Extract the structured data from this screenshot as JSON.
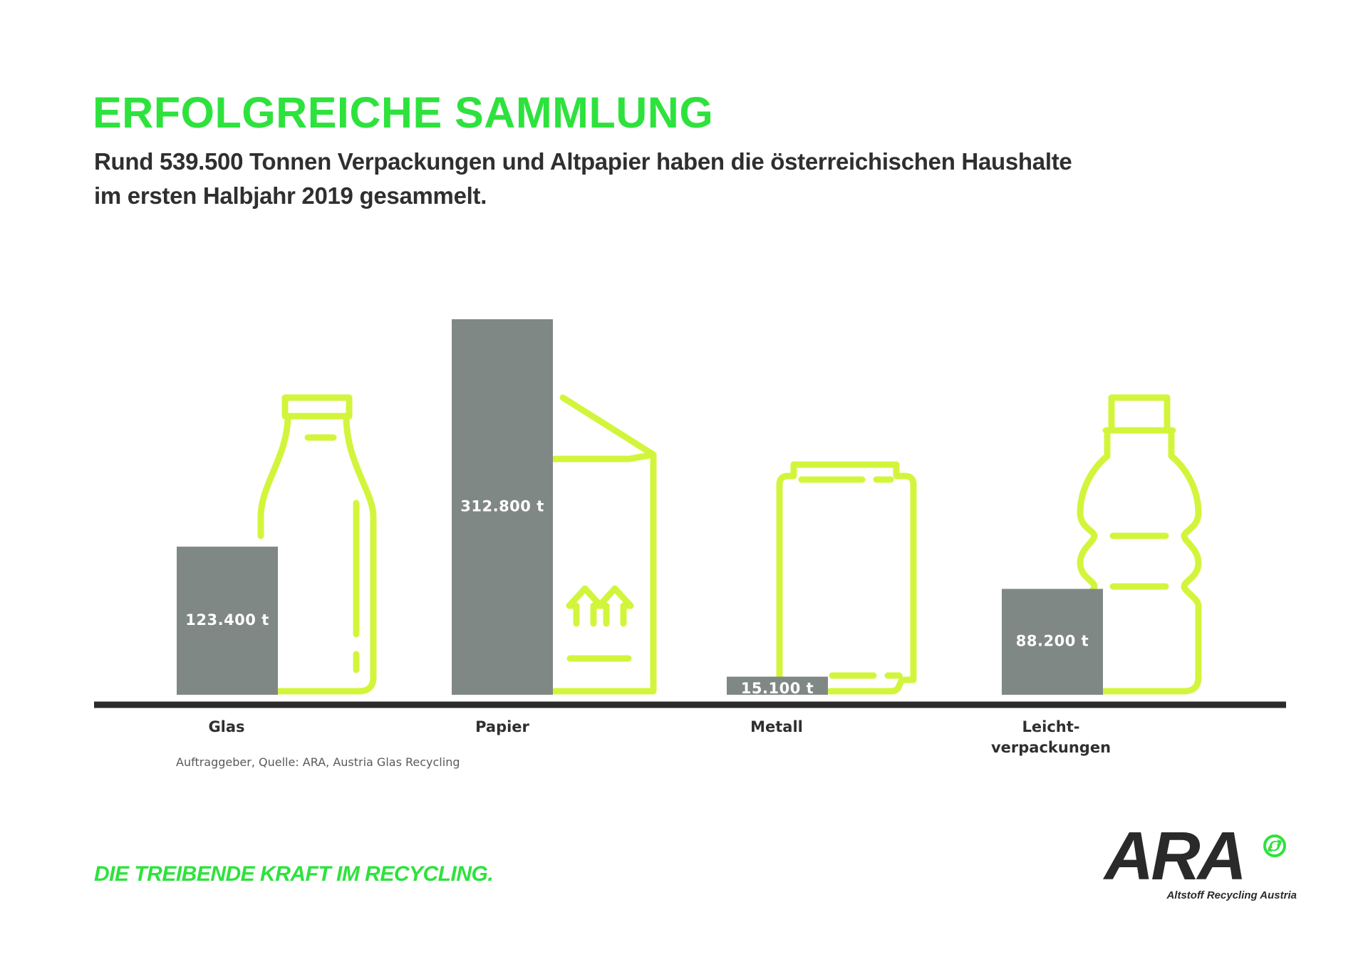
{
  "header": {
    "title": "ERFOLGREICHE SAMMLUNG",
    "subtitle_line1": "Rund 539.500 Tonnen Verpackungen und Altpapier haben die österreichischen Haushalte",
    "subtitle_line2": "im ersten Halbjahr 2019 gesammelt."
  },
  "chart_data": {
    "type": "bar",
    "categories": [
      "Glas",
      "Papier",
      "Metall",
      "Leicht-\nverpackungen"
    ],
    "values": [
      123400,
      312800,
      15100,
      88200
    ],
    "value_labels": [
      "123.400 t",
      "312.800 t",
      "15.100 t",
      "88.200 t"
    ],
    "unit": "t",
    "title": "ERFOLGREICHE SAMMLUNG",
    "xlabel": "",
    "ylabel": "",
    "ylim": [
      0,
      312800
    ],
    "grid": false,
    "icons": [
      "bottle-icon",
      "box-icon",
      "can-icon",
      "plastic-bottle-icon"
    ]
  },
  "footer": {
    "source": "Auftraggeber, Quelle: ARA, Austria Glas Recycling",
    "tagline": "DIE TREIBENDE KRAFT IM RECYCLING."
  },
  "logo": {
    "text": "ARA",
    "subtitle": "Altstoff Recycling Austria"
  },
  "colors": {
    "accent": "#2ee23d",
    "icon_stroke": "#d2f53c",
    "bar": "#808886",
    "baseline": "#2b2b2b",
    "text": "#2f2f2f"
  }
}
